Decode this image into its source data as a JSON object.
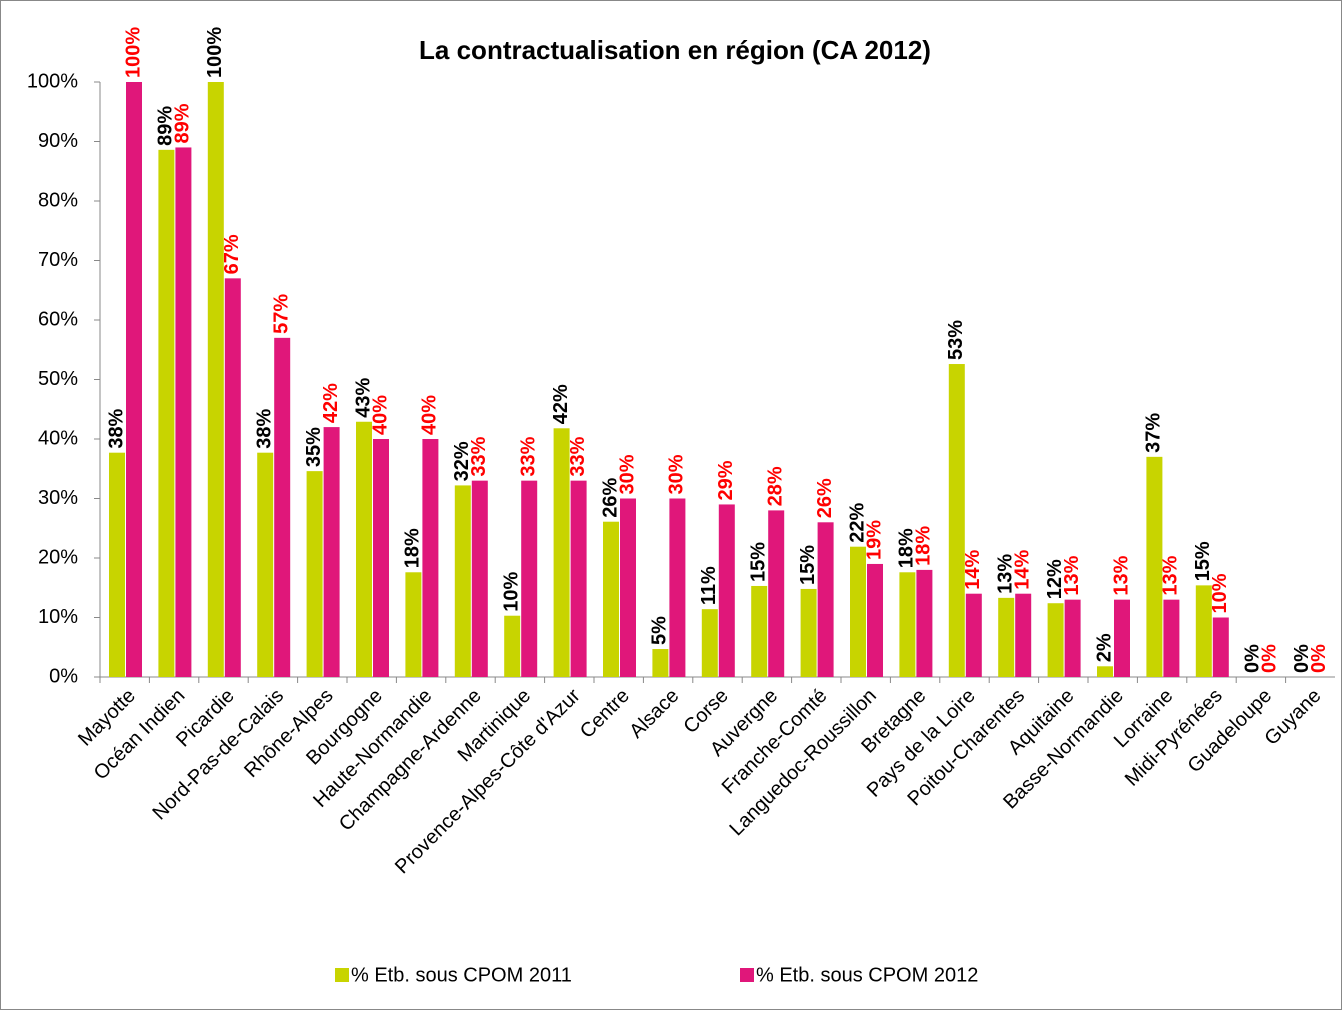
{
  "chart_data": {
    "type": "bar",
    "title": "La contractualisation en région (CA 2012)",
    "categories": [
      "Mayotte",
      "Océan Indien",
      "Picardie",
      "Nord-Pas-de-Calais",
      "Rhône-Alpes",
      "Bourgogne",
      "Haute-Normandie",
      "Champagne-Ardenne",
      "Martinique",
      "Provence-Alpes-Côte d'Azur",
      "Centre",
      "Alsace",
      "Corse",
      "Auvergne",
      "Franche-Comté",
      "Languedoc-Roussillon",
      "Bretagne",
      "Pays de la Loire",
      "Poitou-Charentes",
      "Aquitaine",
      "Basse-Normandie",
      "Lorraine",
      "Midi-Pyrénées",
      "Guadeloupe",
      "Guyane"
    ],
    "series": [
      {
        "name": "% Etb. sous CPOM 2011",
        "color": "#c8d400",
        "label_color": "#000000",
        "values": [
          37.7,
          88.6,
          100,
          37.7,
          34.6,
          42.9,
          17.6,
          32.2,
          10.3,
          41.8,
          26.1,
          4.7,
          11.4,
          15.3,
          14.8,
          21.9,
          17.6,
          52.6,
          13.3,
          12.4,
          1.8,
          37,
          15.4,
          0,
          0
        ],
        "value_labels": [
          "38%",
          "89%",
          "100%",
          "38%",
          "35%",
          "43%",
          "18%",
          "32%",
          "10%",
          "42%",
          "26%",
          "5%",
          "11%",
          "15%",
          "15%",
          "22%",
          "18%",
          "53%",
          "13%",
          "12%",
          "2%",
          "37%",
          "15%",
          "0%",
          "0%"
        ]
      },
      {
        "name": "% Etb. sous CPOM 2012",
        "color": "#e0177a",
        "label_color": "#ff0000",
        "values": [
          100,
          89,
          67,
          57,
          42,
          40,
          40,
          33,
          33,
          33,
          30,
          30,
          29,
          28,
          26,
          19,
          18,
          14,
          14,
          13,
          13,
          13,
          10,
          0,
          0
        ],
        "value_labels": [
          "100%",
          "89%",
          "67%",
          "57%",
          "42%",
          "40%",
          "40%",
          "33%",
          "33%",
          "33%",
          "30%",
          "30%",
          "29%",
          "28%",
          "26%",
          "19%",
          "18%",
          "14%",
          "14%",
          "13%",
          "13%",
          "13%",
          "10%",
          "0%",
          "0%"
        ]
      }
    ],
    "ylim": [
      0,
      100
    ],
    "yticks": [
      {
        "value": 0,
        "label": "0%"
      },
      {
        "value": 10,
        "label": "10%"
      },
      {
        "value": 20,
        "label": "20%"
      },
      {
        "value": 30,
        "label": "30%"
      },
      {
        "value": 40,
        "label": "40%"
      },
      {
        "value": 50,
        "label": "50%"
      },
      {
        "value": 60,
        "label": "60%"
      },
      {
        "value": 70,
        "label": "70%"
      },
      {
        "value": 80,
        "label": "80%"
      },
      {
        "value": 90,
        "label": "90%"
      },
      {
        "value": 100,
        "label": "100%"
      }
    ],
    "grid": false,
    "legend": "bottom"
  }
}
